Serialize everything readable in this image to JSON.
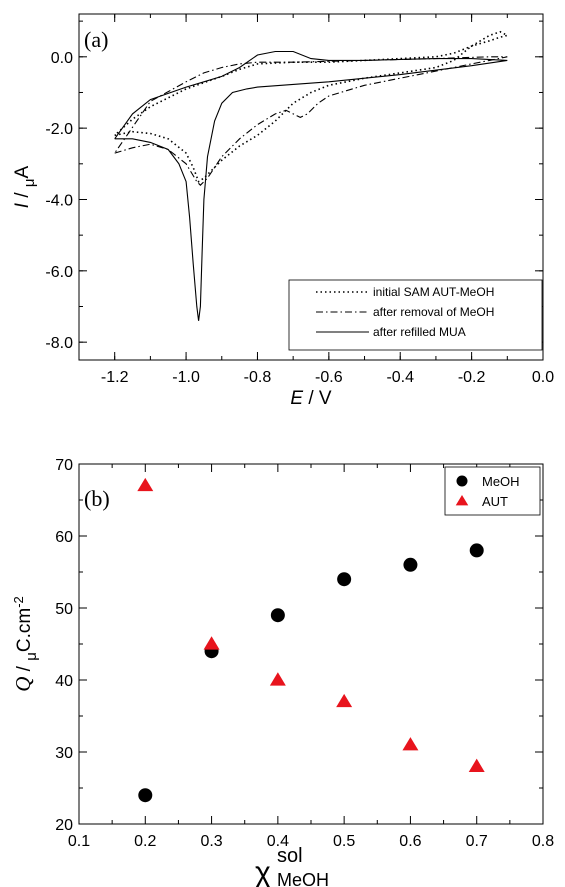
{
  "chart_data": [
    {
      "type": "line",
      "panel_label": "(a)",
      "xlabel_main": "E",
      "xlabel_unit": " / V",
      "ylabel_main": "I",
      "ylabel_sep": " / ",
      "ylabel_sub": "μ",
      "ylabel_unit": "A",
      "xlim": [
        -1.3,
        0.0
      ],
      "ylim": [
        -8.5,
        1.2
      ],
      "x_ticks": [
        -1.2,
        -1.0,
        -0.8,
        -0.6,
        -0.4,
        -0.2,
        0.0
      ],
      "x_tick_labels": [
        "-1.2",
        "-1.0",
        "-0.8",
        "-0.6",
        "-0.4",
        "-0.2",
        "0.0"
      ],
      "y_ticks": [
        0,
        -2,
        -4,
        -6,
        -8
      ],
      "y_tick_labels": [
        "0.0",
        "-2.0",
        "-4.0",
        "-6.0",
        "-8.0"
      ],
      "legend_position": "bottom-right",
      "series": [
        {
          "name": "initial SAM AUT-MeOH",
          "dash": "dotted",
          "points": [
            [
              -1.2,
              -2.2
            ],
            [
              -1.15,
              -2.1
            ],
            [
              -1.1,
              -2.15
            ],
            [
              -1.05,
              -2.3
            ],
            [
              -1.0,
              -2.7
            ],
            [
              -0.98,
              -3.1
            ],
            [
              -0.965,
              -3.5
            ],
            [
              -0.95,
              -3.4
            ],
            [
              -0.93,
              -3.2
            ],
            [
              -0.9,
              -2.9
            ],
            [
              -0.85,
              -2.5
            ],
            [
              -0.8,
              -2.2
            ],
            [
              -0.75,
              -1.8
            ],
            [
              -0.7,
              -1.3
            ],
            [
              -0.65,
              -1.0
            ],
            [
              -0.6,
              -0.8
            ],
            [
              -0.5,
              -0.6
            ],
            [
              -0.4,
              -0.45
            ],
            [
              -0.3,
              -0.3
            ],
            [
              -0.25,
              -0.1
            ],
            [
              -0.2,
              0.3
            ],
            [
              -0.15,
              0.6
            ],
            [
              -0.12,
              0.7
            ],
            [
              -0.1,
              0.6
            ],
            [
              -0.12,
              0.55
            ],
            [
              -0.15,
              0.45
            ],
            [
              -0.2,
              0.3
            ],
            [
              -0.25,
              0.1
            ],
            [
              -0.3,
              0.0
            ],
            [
              -0.4,
              -0.05
            ],
            [
              -0.5,
              -0.1
            ],
            [
              -0.6,
              -0.15
            ],
            [
              -0.7,
              -0.15
            ],
            [
              -0.8,
              -0.2
            ],
            [
              -0.85,
              -0.35
            ],
            [
              -0.9,
              -0.55
            ],
            [
              -1.0,
              -0.9
            ],
            [
              -1.1,
              -1.4
            ],
            [
              -1.15,
              -1.75
            ],
            [
              -1.2,
              -2.2
            ]
          ]
        },
        {
          "name": "after removal of MeOH",
          "dash": "dashdot",
          "points": [
            [
              -1.2,
              -2.7
            ],
            [
              -1.15,
              -2.55
            ],
            [
              -1.1,
              -2.45
            ],
            [
              -1.05,
              -2.6
            ],
            [
              -1.0,
              -3.0
            ],
            [
              -0.97,
              -3.5
            ],
            [
              -0.96,
              -3.6
            ],
            [
              -0.94,
              -3.4
            ],
            [
              -0.92,
              -3.1
            ],
            [
              -0.9,
              -2.8
            ],
            [
              -0.85,
              -2.3
            ],
            [
              -0.8,
              -1.9
            ],
            [
              -0.75,
              -1.6
            ],
            [
              -0.72,
              -1.5
            ],
            [
              -0.7,
              -1.6
            ],
            [
              -0.68,
              -1.7
            ],
            [
              -0.66,
              -1.6
            ],
            [
              -0.63,
              -1.3
            ],
            [
              -0.6,
              -1.1
            ],
            [
              -0.5,
              -0.8
            ],
            [
              -0.4,
              -0.6
            ],
            [
              -0.3,
              -0.4
            ],
            [
              -0.2,
              -0.2
            ],
            [
              -0.15,
              -0.1
            ],
            [
              -0.1,
              0.0
            ],
            [
              -0.15,
              0.0
            ],
            [
              -0.3,
              -0.05
            ],
            [
              -0.5,
              -0.1
            ],
            [
              -0.7,
              -0.15
            ],
            [
              -0.8,
              -0.15
            ],
            [
              -0.85,
              -0.2
            ],
            [
              -0.9,
              -0.3
            ],
            [
              -0.95,
              -0.45
            ],
            [
              -1.0,
              -0.7
            ],
            [
              -1.1,
              -1.25
            ],
            [
              -1.2,
              -2.7
            ]
          ]
        },
        {
          "name": "after refilled MUA",
          "dash": "solid",
          "points": [
            [
              -1.2,
              -2.3
            ],
            [
              -1.15,
              -2.3
            ],
            [
              -1.1,
              -2.4
            ],
            [
              -1.05,
              -2.6
            ],
            [
              -1.02,
              -3.0
            ],
            [
              -1.0,
              -3.5
            ],
            [
              -0.99,
              -4.5
            ],
            [
              -0.98,
              -5.8
            ],
            [
              -0.97,
              -7.0
            ],
            [
              -0.965,
              -7.4
            ],
            [
              -0.96,
              -7.0
            ],
            [
              -0.955,
              -5.5
            ],
            [
              -0.95,
              -4.0
            ],
            [
              -0.94,
              -2.8
            ],
            [
              -0.92,
              -1.8
            ],
            [
              -0.9,
              -1.3
            ],
            [
              -0.87,
              -1.0
            ],
            [
              -0.83,
              -0.9
            ],
            [
              -0.8,
              -0.85
            ],
            [
              -0.6,
              -0.7
            ],
            [
              -0.4,
              -0.5
            ],
            [
              -0.2,
              -0.25
            ],
            [
              -0.1,
              -0.1
            ],
            [
              -0.2,
              -0.05
            ],
            [
              -0.3,
              -0.05
            ],
            [
              -0.5,
              -0.1
            ],
            [
              -0.6,
              -0.1
            ],
            [
              -0.65,
              -0.05
            ],
            [
              -0.7,
              0.15
            ],
            [
              -0.75,
              0.15
            ],
            [
              -0.8,
              0.05
            ],
            [
              -0.85,
              -0.3
            ],
            [
              -0.9,
              -0.55
            ],
            [
              -0.95,
              -0.7
            ],
            [
              -1.0,
              -0.85
            ],
            [
              -1.1,
              -1.2
            ],
            [
              -1.15,
              -1.6
            ],
            [
              -1.2,
              -2.3
            ]
          ]
        }
      ]
    },
    {
      "type": "scatter",
      "panel_label": "(b)",
      "xlabel_main": "χ",
      "xlabel_sup": "sol",
      "xlabel_sub": "MeOH",
      "ylabel_main": "Q",
      "ylabel_sep": " / ",
      "ylabel_sub": "μ",
      "ylabel_unit": "C.cm",
      "ylabel_sup": "-2",
      "xlim": [
        0.1,
        0.8
      ],
      "ylim": [
        20,
        70
      ],
      "x_ticks": [
        0.1,
        0.2,
        0.3,
        0.4,
        0.5,
        0.6,
        0.7,
        0.8
      ],
      "x_tick_labels": [
        "0.1",
        "0.2",
        "0.3",
        "0.4",
        "0.5",
        "0.6",
        "0.7",
        "0.8"
      ],
      "y_ticks": [
        20,
        30,
        40,
        50,
        60,
        70
      ],
      "y_tick_labels": [
        "20",
        "30",
        "40",
        "50",
        "60",
        "70"
      ],
      "legend_position": "top-right",
      "series": [
        {
          "name": "MeOH",
          "marker": "circle",
          "color": "#000000",
          "x": [
            0.2,
            0.3,
            0.4,
            0.5,
            0.6,
            0.7
          ],
          "y": [
            24,
            44,
            49,
            54,
            56,
            58
          ]
        },
        {
          "name": "AUT",
          "marker": "triangle",
          "color": "#e8141d",
          "x": [
            0.2,
            0.3,
            0.4,
            0.5,
            0.6,
            0.7
          ],
          "y": [
            67,
            45,
            40,
            37,
            31,
            28
          ]
        }
      ]
    }
  ]
}
